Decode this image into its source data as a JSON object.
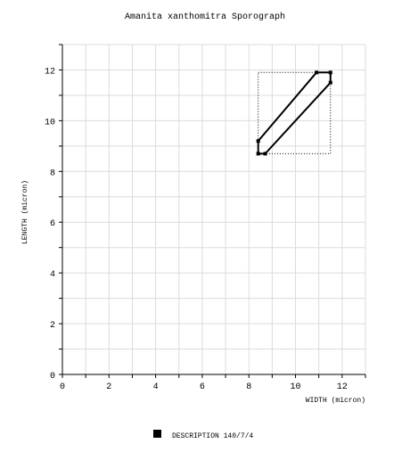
{
  "chart_data": {
    "type": "line",
    "title": "Amanita xanthomitra Sporograph",
    "x_label": "WIDTH (micron)",
    "y_label": "LENGTH (micron)",
    "series": [
      {
        "name": "DESCRIPTION 140/7/4",
        "color": "#000000",
        "x": [
          8.4,
          8.4,
          10.9,
          11.5,
          11.5,
          8.7
        ],
        "values": [
          8.7,
          9.2,
          11.9,
          11.9,
          11.5,
          8.7
        ]
      }
    ],
    "bounding_box": {
      "x": [
        8.4,
        11.5
      ],
      "y": [
        8.7,
        11.9
      ]
    },
    "xlim": [
      0,
      13
    ],
    "ylim": [
      0,
      13
    ],
    "xticks": [
      0,
      2,
      4,
      6,
      8,
      10,
      12
    ],
    "yticks": [
      0,
      2,
      4,
      6,
      8,
      10,
      12
    ],
    "minor_xticks": [
      1,
      3,
      5,
      7,
      9,
      11,
      13
    ],
    "minor_yticks": [
      1,
      3,
      5,
      7,
      9,
      11,
      13
    ],
    "grid": true
  }
}
